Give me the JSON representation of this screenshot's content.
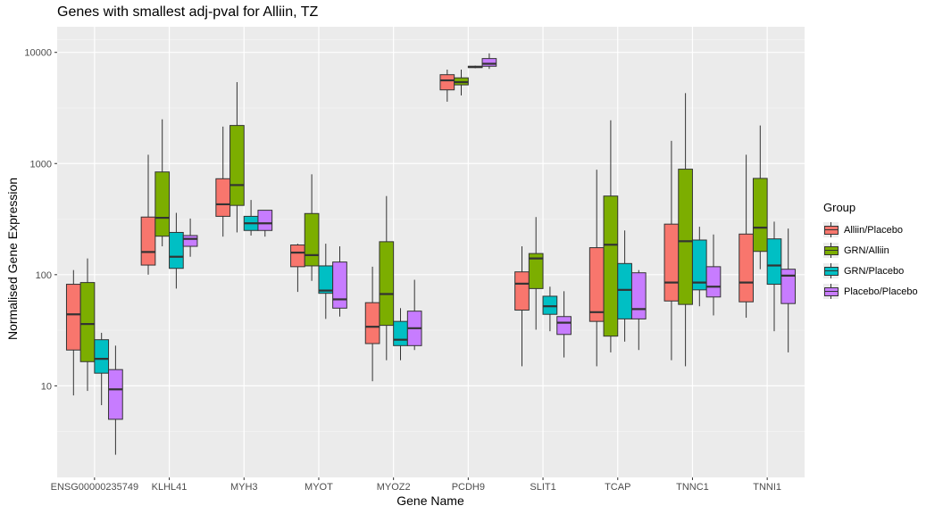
{
  "chart_data": {
    "type": "boxplot",
    "title": "Genes with smallest adj-pval for Alliin, TZ",
    "xlabel": "Gene Name",
    "ylabel": "Normalised Gene Expression",
    "yscale": "log10",
    "ylim": [
      1.5,
      17000
    ],
    "yticks": [
      10,
      100,
      1000,
      10000
    ],
    "ytick_labels": [
      "10",
      "100",
      "1000",
      "10000"
    ],
    "grid": true,
    "legend_position": "right",
    "legend_title": "Group",
    "categories": [
      "ENSG00000235749",
      "KLHL41",
      "MYH3",
      "MYOT",
      "MYOZ2",
      "PCDH9",
      "SLIT1",
      "TCAP",
      "TNNC1",
      "TNNI1"
    ],
    "groups": [
      {
        "name": "Alliin/Placebo",
        "color": "#F8766D",
        "boxes": [
          {
            "min": 8.2,
            "q1": 21,
            "median": 44,
            "q3": 82,
            "max": 110
          },
          {
            "min": 100,
            "q1": 122,
            "median": 160,
            "q3": 330,
            "max": 1200
          },
          {
            "min": 220,
            "q1": 335,
            "median": 430,
            "q3": 730,
            "max": 2150
          },
          {
            "min": 70,
            "q1": 118,
            "median": 158,
            "q3": 185,
            "max": 190
          },
          {
            "min": 11,
            "q1": 24,
            "median": 34,
            "q3": 56,
            "max": 118
          },
          {
            "min": 3600,
            "q1": 4600,
            "median": 5600,
            "q3": 6300,
            "max": 7000
          },
          {
            "min": 15,
            "q1": 48,
            "median": 83,
            "q3": 106,
            "max": 180
          },
          {
            "min": 15,
            "q1": 38,
            "median": 46,
            "q3": 175,
            "max": 880
          },
          {
            "min": 17,
            "q1": 58,
            "median": 85,
            "q3": 285,
            "max": 1600
          },
          {
            "min": 41,
            "q1": 57,
            "median": 85,
            "q3": 232,
            "max": 1200
          }
        ]
      },
      {
        "name": "GRN/Alliin",
        "color": "#7CAE00",
        "boxes": [
          {
            "min": 9,
            "q1": 16.5,
            "median": 36,
            "q3": 85,
            "max": 140
          },
          {
            "min": 180,
            "q1": 222,
            "median": 325,
            "q3": 840,
            "max": 2500
          },
          {
            "min": 240,
            "q1": 420,
            "median": 640,
            "q3": 2200,
            "max": 5400
          },
          {
            "min": 88,
            "q1": 120,
            "median": 150,
            "q3": 355,
            "max": 800
          },
          {
            "min": 17,
            "q1": 35,
            "median": 67,
            "q3": 198,
            "max": 510
          },
          {
            "min": 4100,
            "q1": 5100,
            "median": 5400,
            "q3": 5900,
            "max": 7000
          },
          {
            "min": 32,
            "q1": 75,
            "median": 140,
            "q3": 155,
            "max": 330
          },
          {
            "min": 20,
            "q1": 28,
            "median": 186,
            "q3": 510,
            "max": 2450
          },
          {
            "min": 15,
            "q1": 54,
            "median": 200,
            "q3": 890,
            "max": 4300
          },
          {
            "min": 112,
            "q1": 162,
            "median": 265,
            "q3": 735,
            "max": 2200
          }
        ]
      },
      {
        "name": "GRN/Placebo",
        "color": "#00BFC4",
        "boxes": [
          {
            "min": 6.7,
            "q1": 13,
            "median": 17.5,
            "q3": 26,
            "max": 30
          },
          {
            "min": 75,
            "q1": 114,
            "median": 145,
            "q3": 240,
            "max": 360
          },
          {
            "min": 225,
            "q1": 250,
            "median": 290,
            "q3": 335,
            "max": 470
          },
          {
            "min": 40,
            "q1": 68,
            "median": 72,
            "q3": 120,
            "max": 190
          },
          {
            "min": 17,
            "q1": 23,
            "median": 26,
            "q3": 38,
            "max": 50
          },
          {
            "min": 7200,
            "q1": 7300,
            "median": 7400,
            "q3": 7500,
            "max": 7600
          },
          {
            "min": 31,
            "q1": 44,
            "median": 52,
            "q3": 64,
            "max": 78
          },
          {
            "min": 25,
            "q1": 40,
            "median": 73,
            "q3": 126,
            "max": 250
          },
          {
            "min": 52,
            "q1": 73,
            "median": 85,
            "q3": 205,
            "max": 270
          },
          {
            "min": 31,
            "q1": 82,
            "median": 121,
            "q3": 210,
            "max": 300
          }
        ]
      },
      {
        "name": "Placebo/Placebo",
        "color": "#C77CFF",
        "boxes": [
          {
            "min": 2.4,
            "q1": 5,
            "median": 9.3,
            "q3": 14,
            "max": 23
          },
          {
            "min": 145,
            "q1": 180,
            "median": 210,
            "q3": 225,
            "max": 320
          },
          {
            "min": 220,
            "q1": 250,
            "median": 290,
            "q3": 380,
            "max": 380
          },
          {
            "min": 42,
            "q1": 50,
            "median": 60,
            "q3": 130,
            "max": 180
          },
          {
            "min": 21,
            "q1": 23,
            "median": 33,
            "q3": 47,
            "max": 90
          },
          {
            "min": 7100,
            "q1": 7500,
            "median": 7900,
            "q3": 8800,
            "max": 9800
          },
          {
            "min": 18,
            "q1": 29,
            "median": 37,
            "q3": 42,
            "max": 71
          },
          {
            "min": 21,
            "q1": 40,
            "median": 49,
            "q3": 104,
            "max": 110
          },
          {
            "min": 43,
            "q1": 63,
            "median": 78,
            "q3": 118,
            "max": 230
          },
          {
            "min": 20,
            "q1": 55,
            "median": 98,
            "q3": 112,
            "max": 260
          }
        ]
      }
    ]
  }
}
